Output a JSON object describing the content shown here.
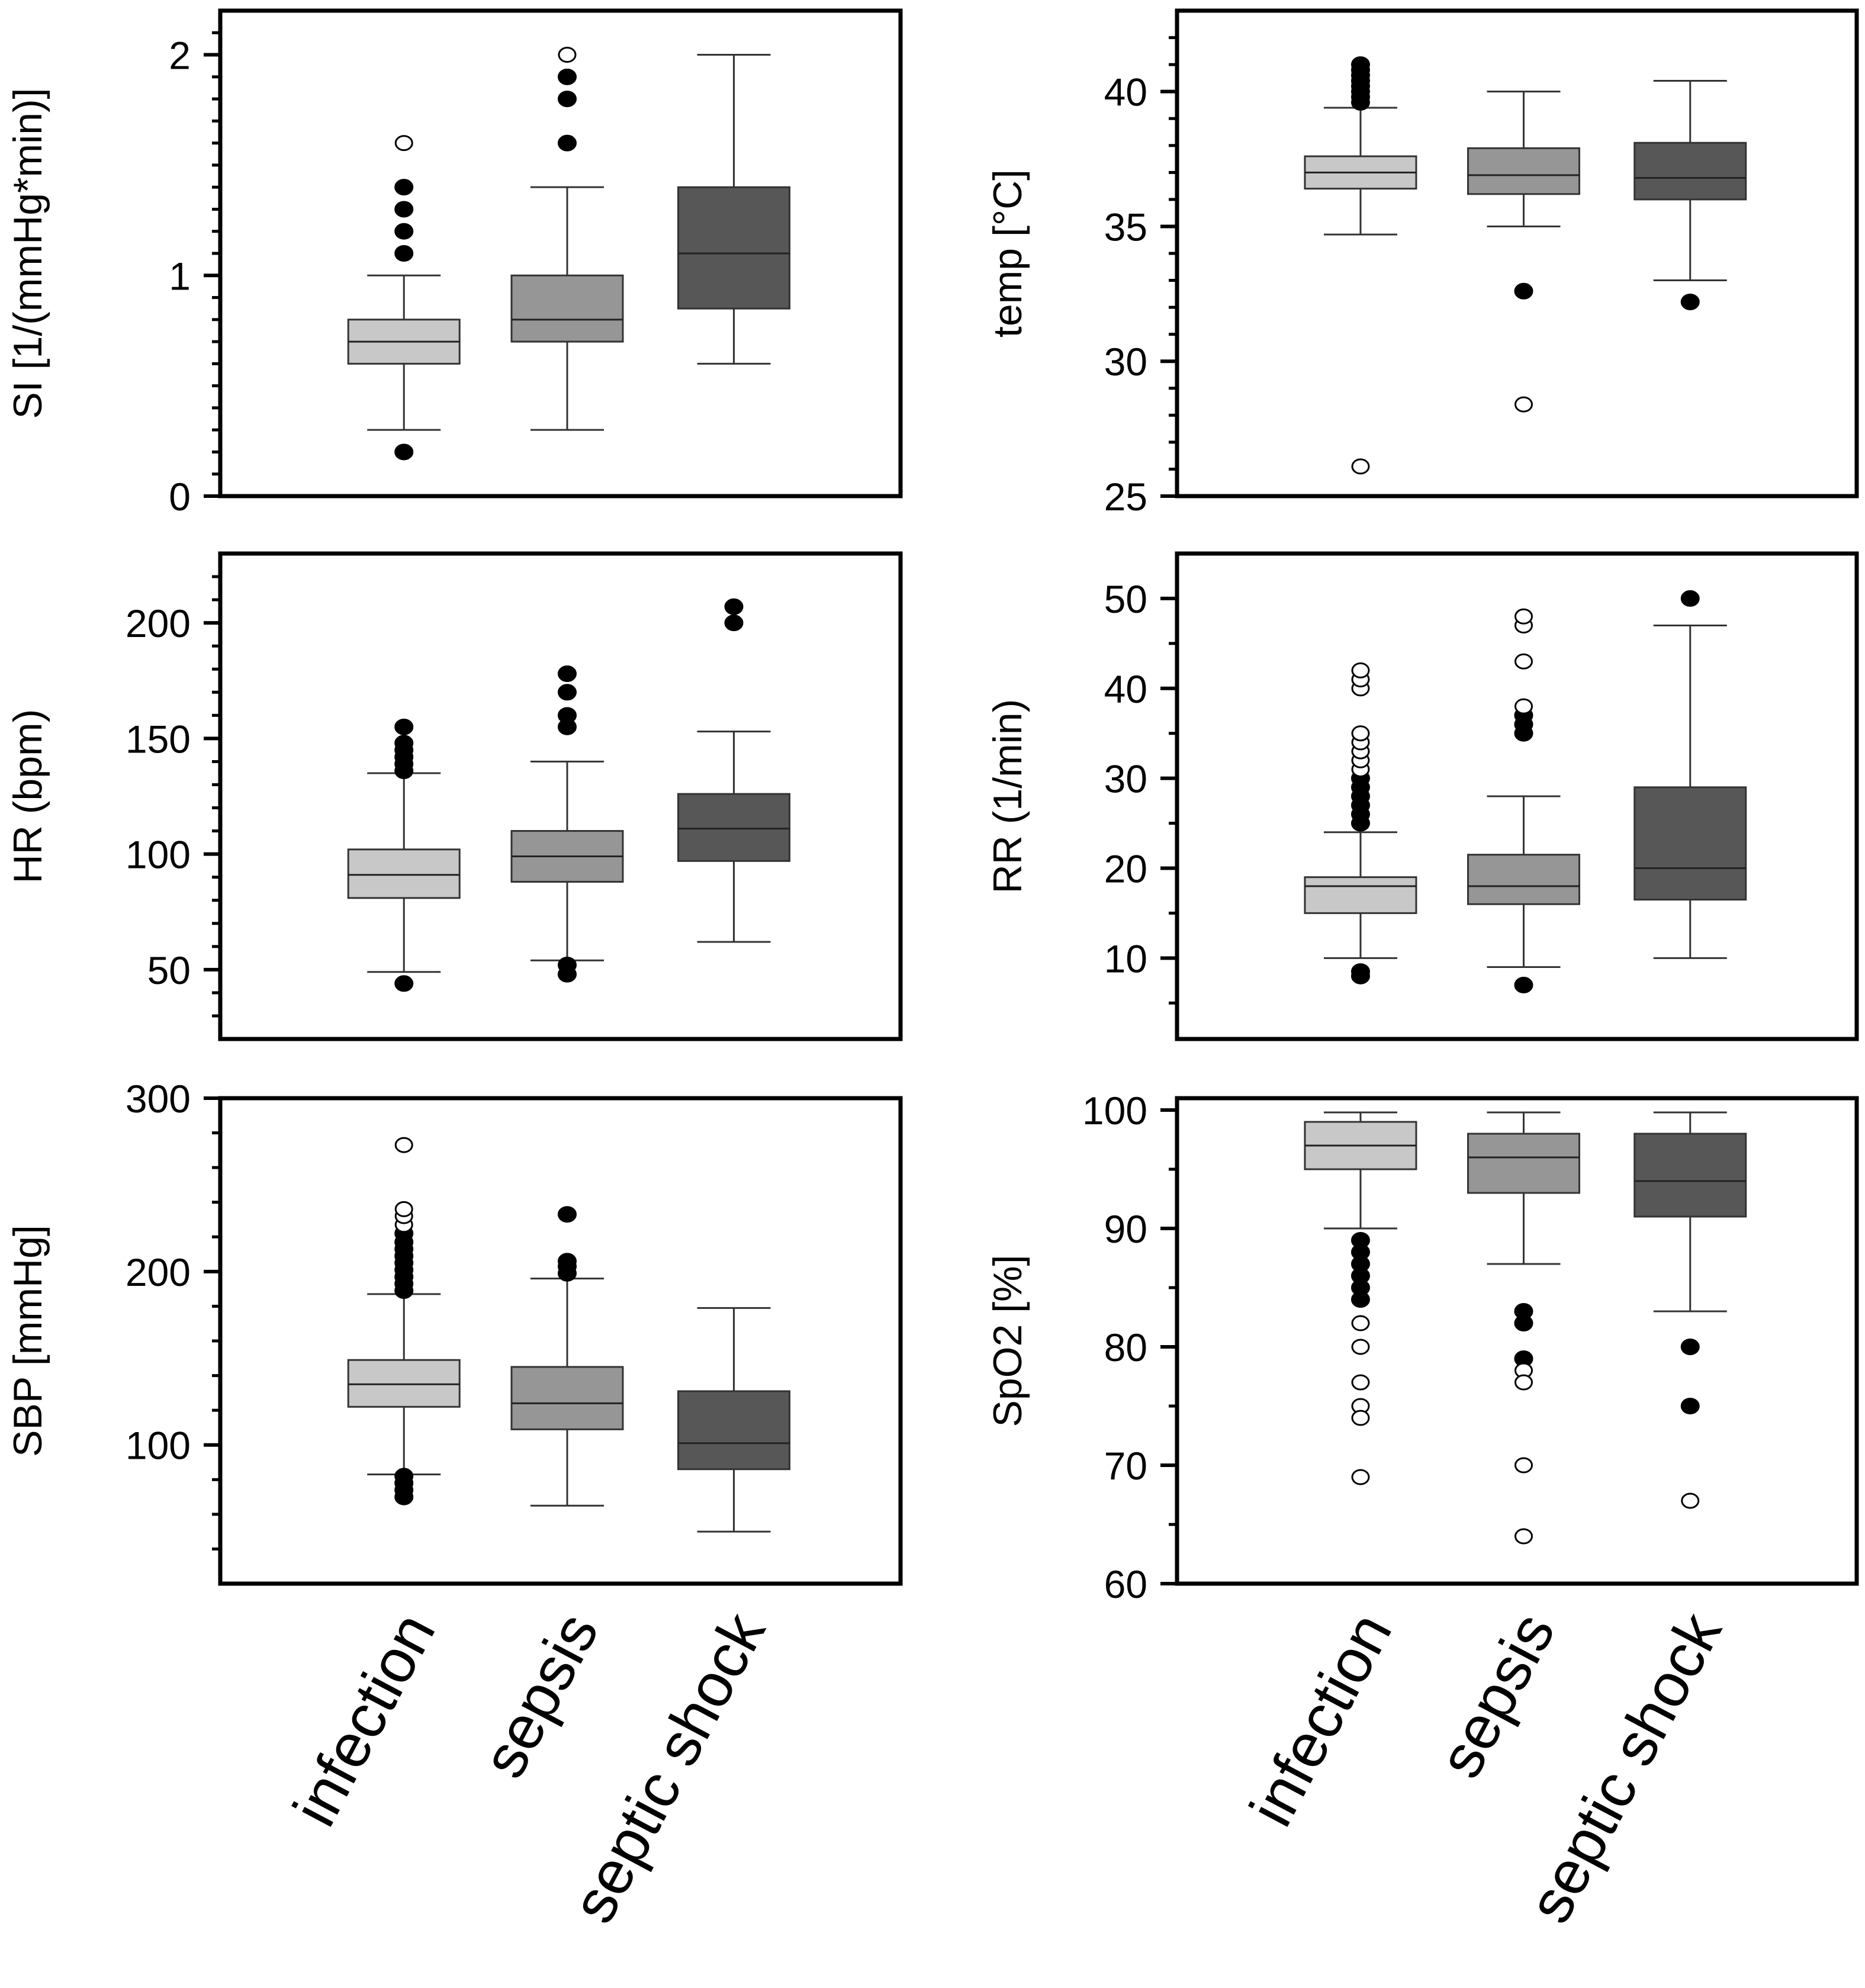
{
  "colors": {
    "infection": "#c8c8c8",
    "sepsis": "#969696",
    "septic_shock": "#575757",
    "axis": "#000000",
    "whisker": "#333333",
    "median": "#222222",
    "outlier_fill": "#000000",
    "extreme_fill": "#ffffff"
  },
  "chart_data": [
    {
      "type": "box",
      "id": "si",
      "ylabel": "SI [1/(mmHg*min)]",
      "ylim": [
        0,
        2.2
      ],
      "yticks": [
        0,
        1,
        2
      ],
      "ytick_labels": [
        "0",
        "1",
        "2"
      ],
      "minor_step": 0.1,
      "show_xlabels": false,
      "categories": [
        "infection",
        "sepsis",
        "septic shock"
      ],
      "boxes": [
        {
          "category": "infection",
          "whisker_low": 0.3,
          "q1": 0.6,
          "median": 0.7,
          "q3": 0.8,
          "whisker_high": 1.0,
          "outliers": [
            0.2,
            1.1,
            1.2,
            1.3,
            1.4
          ],
          "extremes": [
            1.6
          ]
        },
        {
          "category": "sepsis",
          "whisker_low": 0.3,
          "q1": 0.7,
          "median": 0.8,
          "q3": 1.0,
          "whisker_high": 1.4,
          "outliers": [
            1.6,
            1.8,
            1.9
          ],
          "extremes": [
            2.0
          ]
        },
        {
          "category": "septic shock",
          "whisker_low": 0.6,
          "q1": 0.85,
          "median": 1.1,
          "q3": 1.4,
          "whisker_high": 2.0,
          "outliers": [],
          "extremes": []
        }
      ]
    },
    {
      "type": "box",
      "id": "temp",
      "ylabel": "temp [°C]",
      "ylim": [
        25,
        43
      ],
      "yticks": [
        25,
        30,
        35,
        40
      ],
      "ytick_labels": [
        "25",
        "30",
        "35",
        "40"
      ],
      "minor_step": 1,
      "show_xlabels": false,
      "categories": [
        "infection",
        "sepsis",
        "septic shock"
      ],
      "boxes": [
        {
          "category": "infection",
          "whisker_low": 34.7,
          "q1": 36.4,
          "median": 37.0,
          "q3": 37.6,
          "whisker_high": 39.4,
          "outliers": [
            39.6,
            39.8,
            40.0,
            40.2,
            40.4,
            40.6,
            40.8,
            41.0
          ],
          "extremes": [
            26.1
          ]
        },
        {
          "category": "sepsis",
          "whisker_low": 35.0,
          "q1": 36.2,
          "median": 36.9,
          "q3": 37.9,
          "whisker_high": 40.0,
          "outliers": [
            32.6
          ],
          "extremes": [
            28.4
          ]
        },
        {
          "category": "septic shock",
          "whisker_low": 33.0,
          "q1": 36.0,
          "median": 36.8,
          "q3": 38.1,
          "whisker_high": 40.4,
          "outliers": [
            32.2
          ],
          "extremes": []
        }
      ]
    },
    {
      "type": "box",
      "id": "hr",
      "ylabel": "HR (bpm)",
      "ylim": [
        20,
        230
      ],
      "yticks": [
        50,
        100,
        150,
        200
      ],
      "ytick_labels": [
        "50",
        "100",
        "150",
        "200"
      ],
      "minor_step": 10,
      "show_xlabels": false,
      "categories": [
        "infection",
        "sepsis",
        "septic shock"
      ],
      "boxes": [
        {
          "category": "infection",
          "whisker_low": 49,
          "q1": 81,
          "median": 91,
          "q3": 102,
          "whisker_high": 135,
          "outliers": [
            44,
            136,
            139,
            142,
            145,
            148,
            155
          ],
          "extremes": []
        },
        {
          "category": "sepsis",
          "whisker_low": 54,
          "q1": 88,
          "median": 99,
          "q3": 110,
          "whisker_high": 140,
          "outliers": [
            48,
            52,
            155,
            160,
            170,
            178
          ],
          "extremes": []
        },
        {
          "category": "septic shock",
          "whisker_low": 62,
          "q1": 97,
          "median": 111,
          "q3": 126,
          "whisker_high": 153,
          "outliers": [
            200,
            207
          ],
          "extremes": []
        }
      ]
    },
    {
      "type": "box",
      "id": "rr",
      "ylabel": "RR (1/min)",
      "ylim": [
        1,
        55
      ],
      "yticks": [
        10,
        20,
        30,
        40,
        50
      ],
      "ytick_labels": [
        "10",
        "20",
        "30",
        "40",
        "50"
      ],
      "minor_step": 5,
      "show_xlabels": false,
      "categories": [
        "infection",
        "sepsis",
        "septic shock"
      ],
      "boxes": [
        {
          "category": "infection",
          "whisker_low": 10,
          "q1": 15,
          "median": 18,
          "q3": 19,
          "whisker_high": 24,
          "outliers": [
            8,
            8.5,
            25,
            26,
            27,
            28,
            29,
            30
          ],
          "extremes": [
            31,
            32,
            33,
            34,
            35,
            40,
            41,
            42
          ]
        },
        {
          "category": "sepsis",
          "whisker_low": 9,
          "q1": 16,
          "median": 18,
          "q3": 21.5,
          "whisker_high": 28,
          "outliers": [
            7,
            35,
            36,
            37
          ],
          "extremes": [
            38,
            43,
            47,
            48
          ]
        },
        {
          "category": "septic shock",
          "whisker_low": 10,
          "q1": 16.5,
          "median": 20,
          "q3": 29,
          "whisker_high": 47,
          "outliers": [
            50
          ],
          "extremes": []
        }
      ]
    },
    {
      "type": "box",
      "id": "sbp",
      "ylabel": "SBP [mmHg]",
      "ylim": [
        20,
        300
      ],
      "yticks": [
        100,
        200,
        300
      ],
      "ytick_labels": [
        "100",
        "200",
        "300"
      ],
      "minor_step": 20,
      "show_xlabels": true,
      "categories": [
        "infection",
        "sepsis",
        "septic shock"
      ],
      "boxes": [
        {
          "category": "infection",
          "whisker_low": 83,
          "q1": 122,
          "median": 135,
          "q3": 149,
          "whisker_high": 187,
          "outliers": [
            70,
            74,
            78,
            82,
            189,
            193,
            197,
            201,
            205,
            209,
            213,
            217,
            222
          ],
          "extremes": [
            227,
            232,
            236,
            273
          ]
        },
        {
          "category": "sepsis",
          "whisker_low": 65,
          "q1": 109,
          "median": 124,
          "q3": 145,
          "whisker_high": 196,
          "outliers": [
            199,
            203,
            206,
            233
          ],
          "extremes": []
        },
        {
          "category": "septic shock",
          "whisker_low": 50,
          "q1": 86,
          "median": 101,
          "q3": 131,
          "whisker_high": 179,
          "outliers": [],
          "extremes": []
        }
      ]
    },
    {
      "type": "box",
      "id": "spo2",
      "ylabel": "SpO2 [%]",
      "ylim": [
        60,
        101
      ],
      "yticks": [
        60,
        70,
        80,
        90,
        100
      ],
      "ytick_labels": [
        "60",
        "70",
        "80",
        "90",
        "100"
      ],
      "minor_step": 5,
      "show_xlabels": true,
      "categories": [
        "infection",
        "sepsis",
        "septic shock"
      ],
      "boxes": [
        {
          "category": "infection",
          "whisker_low": 90,
          "q1": 95,
          "median": 97,
          "q3": 99,
          "whisker_high": 99.8,
          "outliers": [
            84,
            85,
            86,
            87,
            88,
            89
          ],
          "extremes": [
            82,
            80,
            77,
            75,
            74,
            69
          ]
        },
        {
          "category": "sepsis",
          "whisker_low": 87,
          "q1": 93,
          "median": 96,
          "q3": 98,
          "whisker_high": 99.8,
          "outliers": [
            79,
            82,
            83
          ],
          "extremes": [
            78,
            77,
            70,
            64
          ]
        },
        {
          "category": "septic shock",
          "whisker_low": 83,
          "q1": 91,
          "median": 94,
          "q3": 98,
          "whisker_high": 99.8,
          "outliers": [
            75,
            80
          ],
          "extremes": [
            67
          ]
        }
      ]
    }
  ]
}
